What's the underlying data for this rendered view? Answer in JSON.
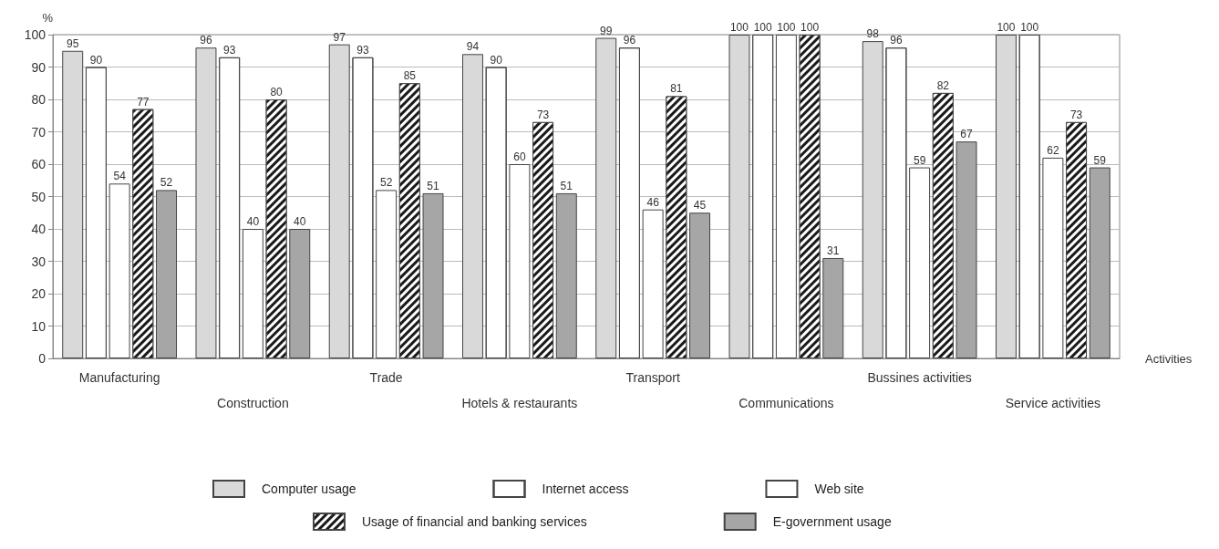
{
  "chart_data": {
    "type": "bar",
    "ylabel": "%",
    "xlabel": "Activities",
    "categories": [
      "Manufacturing",
      "Construction",
      "Trade",
      "Hotels & restaurants",
      "Transport",
      "Communications",
      "Bussines activities",
      "Service activities"
    ],
    "series": [
      {
        "name": "Computer usage",
        "color": "#d9d9d9",
        "values": [
          95,
          96,
          97,
          94,
          99,
          100,
          98,
          100
        ]
      },
      {
        "name": "Internet access",
        "color": "#ffffff",
        "values": [
          90,
          93,
          93,
          90,
          96,
          100,
          96,
          100
        ]
      },
      {
        "name": "Web site",
        "color": "#ffffff",
        "values": [
          54,
          40,
          52,
          60,
          46,
          100,
          59,
          62
        ]
      },
      {
        "name": "Usage of financial and banking services",
        "color": "#1a1a1a",
        "values": [
          77,
          80,
          85,
          73,
          81,
          100,
          82,
          73
        ]
      },
      {
        "name": "E-government usage",
        "color": "#a6a6a6",
        "values": [
          52,
          40,
          51,
          51,
          45,
          31,
          67,
          59
        ]
      }
    ],
    "ylim": [
      0,
      100
    ],
    "yticks": [
      0,
      10,
      20,
      30,
      40,
      50,
      60,
      70,
      80,
      90,
      100
    ],
    "grid": "y",
    "legend": "bottom",
    "data_labels": true
  }
}
